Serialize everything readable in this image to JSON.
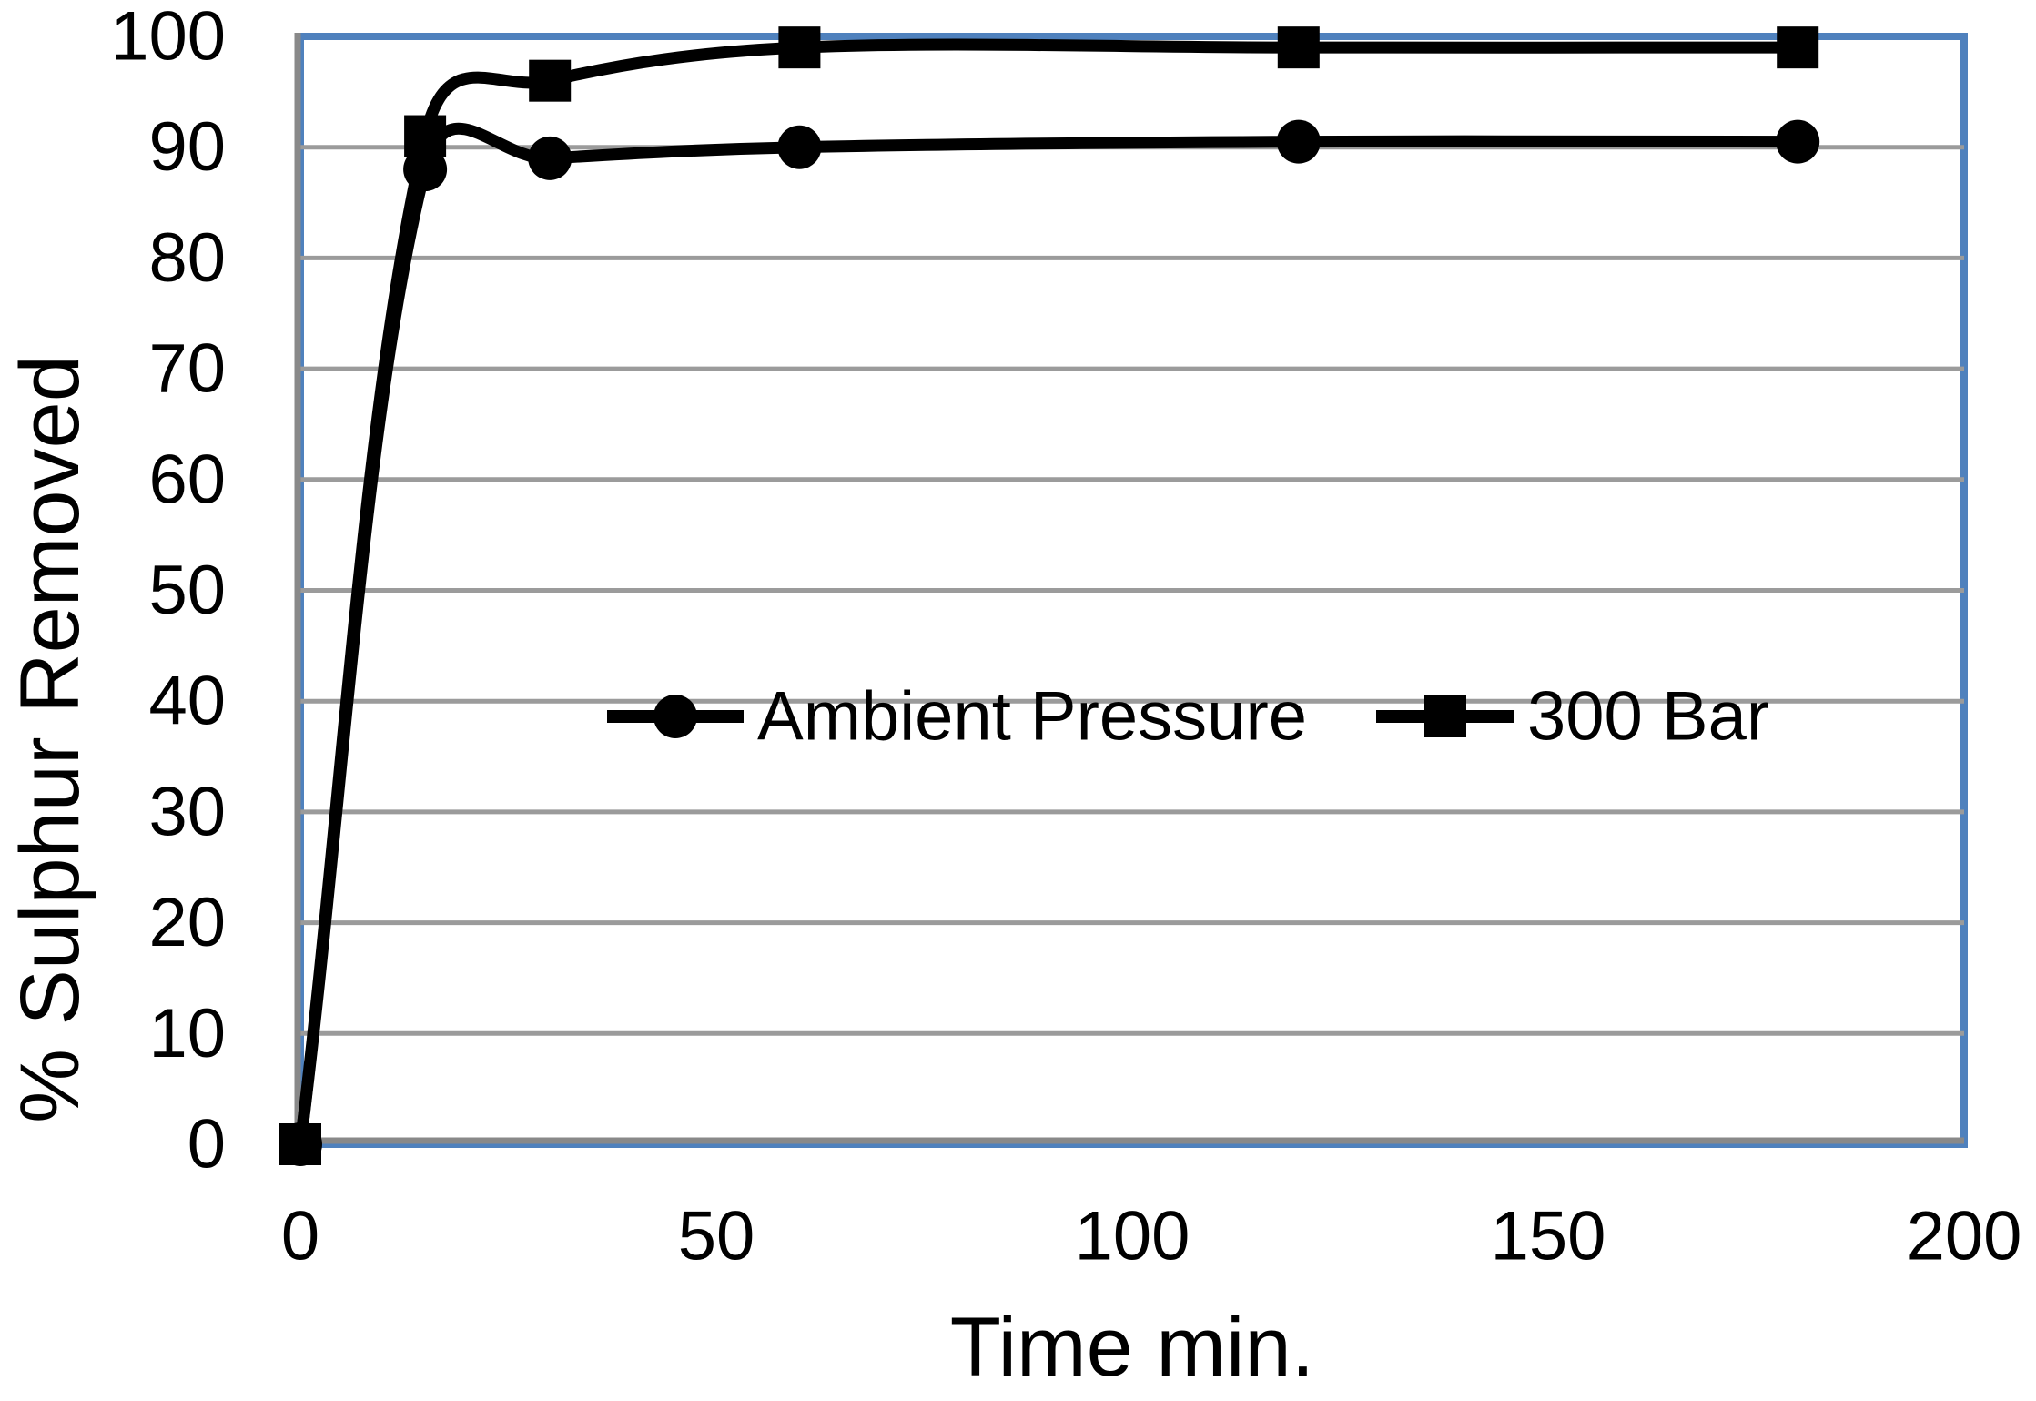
{
  "chart_data": {
    "type": "line",
    "title": "",
    "xlabel": "Time min.",
    "ylabel": "% Sulphur Removed",
    "xlim": [
      0,
      200
    ],
    "ylim": [
      0,
      100
    ],
    "xticks": [
      0,
      50,
      100,
      150,
      200
    ],
    "yticks": [
      0,
      10,
      20,
      30,
      40,
      50,
      60,
      70,
      80,
      90,
      100
    ],
    "grid": "horizontal-only",
    "legend_position": "inside-center",
    "series": [
      {
        "name": "Ambient Pressure",
        "marker": "circle",
        "line_style": "solid-smooth",
        "x": [
          0,
          15,
          30,
          60,
          120,
          180
        ],
        "y": [
          0,
          88,
          89,
          90,
          90.5,
          90.5
        ]
      },
      {
        "name": "300 Bar",
        "marker": "square",
        "line_style": "solid-smooth",
        "x": [
          0,
          15,
          30,
          60,
          120,
          180
        ],
        "y": [
          0,
          91,
          96,
          99,
          99,
          99
        ]
      }
    ]
  },
  "colors": {
    "plot_border": "#4F81BD",
    "gridline": "#9B9B9B",
    "axis_line": "#898989",
    "series": "#000000",
    "background": "#FFFFFF"
  }
}
